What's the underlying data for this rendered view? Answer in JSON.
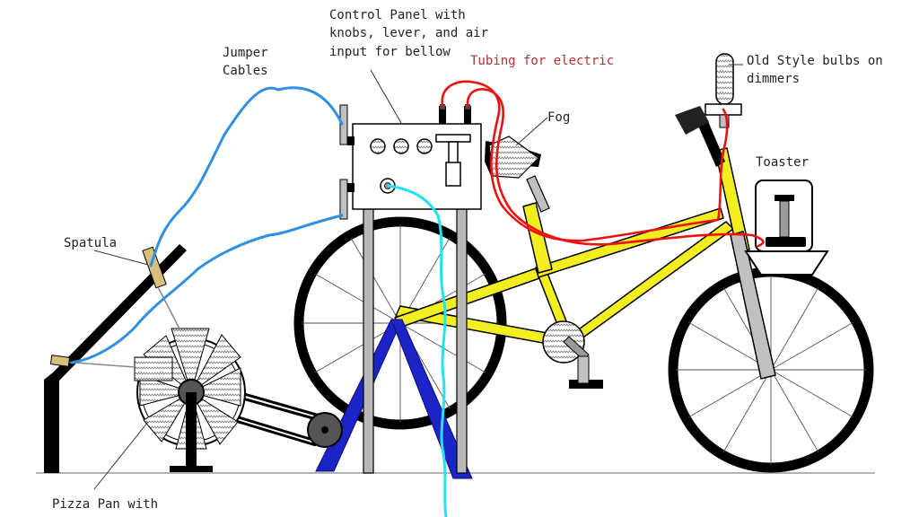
{
  "labels": {
    "control_panel": [
      "Control Panel with",
      "knobs, lever, and air",
      "input for bellow"
    ],
    "jumper_cables": [
      "Jumper",
      "Cables"
    ],
    "tubing": "Tubing for electric",
    "old_style_bulbs": [
      "Old Style bulbs on",
      "dimmers"
    ],
    "fog": "Fog",
    "toaster": "Toaster",
    "spatula": "Spatula",
    "pizza_pan": "Pizza Pan with"
  },
  "colors": {
    "frame": "#f2ee1f",
    "tire": "#000000",
    "jumper_cable": "#2f8fe0",
    "air_tube": "#27e0f0",
    "electric_tubing": "#ee1111",
    "stand": "#1c24c8",
    "post": "#b8b8b8",
    "tubing_label": "#b03030"
  }
}
